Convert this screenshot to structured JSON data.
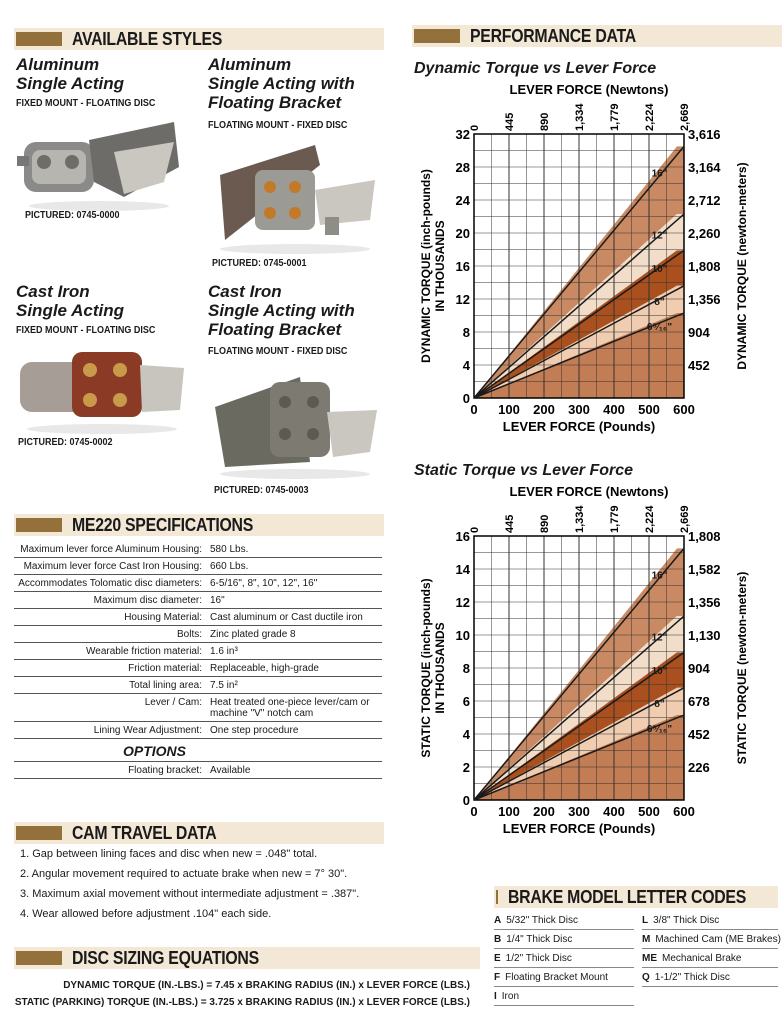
{
  "sections": {
    "available_styles": "AVAILABLE STYLES",
    "performance_data": "PERFORMANCE DATA",
    "specifications": "ME220 SPECIFICATIONS",
    "cam_travel": "CAM TRAVEL DATA",
    "disc_sizing": "DISC SIZING EQUATIONS",
    "brake_codes": "BRAKE MODEL LETTER CODES"
  },
  "styles": [
    {
      "title1": "Aluminum",
      "title2": "Single Acting",
      "sub": "FIXED MOUNT - FLOATING DISC",
      "pictured": "PICTURED: 0745-0000"
    },
    {
      "title1": "Aluminum",
      "title2": "Single Acting with",
      "title3": "Floating Bracket",
      "sub": "FLOATING MOUNT - FIXED DISC",
      "pictured": "PICTURED: 0745-0001"
    },
    {
      "title1": "Cast Iron",
      "title2": "Single Acting",
      "sub": "FIXED MOUNT - FLOATING DISC",
      "pictured": "PICTURED: 0745-0002"
    },
    {
      "title1": "Cast Iron",
      "title2": "Single Acting with",
      "title3": "Floating Bracket",
      "sub": "FLOATING MOUNT - FIXED DISC",
      "pictured": "PICTURED: 0745-0003"
    }
  ],
  "specs": [
    {
      "k": "Maximum lever force Aluminum Housing:",
      "v": "580 Lbs."
    },
    {
      "k": "Maximum lever force Cast Iron Housing:",
      "v": "660 Lbs."
    },
    {
      "k": "Accommodates Tolomatic disc diameters:",
      "v": "6-5/16\",  8\",  10\", 12\", 16\""
    },
    {
      "k": "Maximum disc diameter:",
      "v": "16\""
    },
    {
      "k": "Housing Material:",
      "v": "Cast aluminum or Cast ductile iron"
    },
    {
      "k": "Bolts:",
      "v": "Zinc plated grade 8"
    },
    {
      "k": "Wearable friction material:",
      "v": "1.6 in³"
    },
    {
      "k": "Friction material:",
      "v": "Replaceable, high-grade"
    },
    {
      "k": "Total lining area:",
      "v": "7.5 in²"
    },
    {
      "k": "Lever / Cam:",
      "v": "Heat treated one-piece lever/cam or",
      "v2": "machine \"V\" notch cam"
    },
    {
      "k": "Lining Wear Adjustment:",
      "v": "One step procedure"
    }
  ],
  "options": {
    "heading": "OPTIONS",
    "k": "Floating bracket:",
    "v": "Available"
  },
  "cam_travel": [
    "1.  Gap between lining faces and disc when new = .048\" total.",
    "2.  Angular movement required to actuate brake when new = 7° 30\".",
    "3.  Maximum axial movement without intermediate adjustment = .387\".",
    "4.  Wear allowed before adjustment .104\" each side."
  ],
  "equations": [
    "DYNAMIC TORQUE (IN.-LBS.) = 7.45 x BRAKING RADIUS (IN.) x LEVER FORCE (LBS.)",
    "STATIC (PARKING) TORQUE (IN.-LBS.) = 3.725 x BRAKING RADIUS (IN.) x LEVER FORCE (LBS.)"
  ],
  "codes_left": [
    {
      "c": "A",
      "d": "5/32\" Thick Disc"
    },
    {
      "c": "B",
      "d": "1/4\" Thick Disc"
    },
    {
      "c": "E",
      "d": "1/2\" Thick Disc"
    },
    {
      "c": "F",
      "d": "Floating Bracket Mount"
    },
    {
      "c": "I",
      "d": "Iron"
    }
  ],
  "codes_right": [
    {
      "c": "L",
      "d": "3/8\" Thick Disc"
    },
    {
      "c": "M",
      "d": "Machined Cam (ME Brakes)"
    },
    {
      "c": "ME",
      "d": "Mechanical Brake"
    },
    {
      "c": "Q",
      "d": "1-1/2\" Thick Disc"
    }
  ],
  "colors": {
    "header_bg": "#f3e7d6",
    "header_block": "#94703a",
    "band_dark": "#b8704a",
    "band_light": "#f2ddc9",
    "band_mid": "#dca581",
    "band_deep": "#a9501e"
  },
  "chart_data": [
    {
      "type": "area",
      "title": "Dynamic Torque vs Lever Force",
      "xlabel": "LEVER FORCE (Pounds)",
      "x2label": "LEVER FORCE (Newtons)",
      "ylabel": "DYNAMIC TORQUE (inch-pounds) IN THOUSANDS",
      "y2label": "DYNAMIC TORQUE (newton-meters)",
      "xlim": [
        0,
        600
      ],
      "ylim": [
        0,
        32
      ],
      "x_ticks": [
        "0",
        "100",
        "200",
        "300",
        "400",
        "500",
        "600"
      ],
      "x2_ticks": [
        "0",
        "445",
        "890",
        "1,334",
        "1,779",
        "2,224",
        "2,669"
      ],
      "y_ticks": [
        "0",
        "4",
        "8",
        "12",
        "16",
        "20",
        "24",
        "28",
        "32"
      ],
      "y2_ticks": [
        "452",
        "904",
        "1,356",
        "1,808",
        "2,260",
        "2,712",
        "3,164",
        "3,616"
      ],
      "series": [
        {
          "name": "16\"",
          "x": [
            0,
            580
          ],
          "y": [
            0,
            30.5
          ]
        },
        {
          "name": "12\"",
          "x": [
            0,
            580
          ],
          "y": [
            0,
            22.3
          ]
        },
        {
          "name": "10\"",
          "x": [
            0,
            580
          ],
          "y": [
            0,
            17.9
          ]
        },
        {
          "name": "8\"",
          "x": [
            0,
            580
          ],
          "y": [
            0,
            13.6
          ]
        },
        {
          "name": "6⁵⁄₁₆\"",
          "x": [
            0,
            580
          ],
          "y": [
            0,
            10.3
          ]
        }
      ],
      "grid": true
    },
    {
      "type": "area",
      "title": "Static Torque vs Lever Force",
      "xlabel": "LEVER FORCE (Pounds)",
      "x2label": "LEVER FORCE (Newtons)",
      "ylabel": "STATIC TORQUE (inch-pounds) IN THOUSANDS",
      "y2label": "STATIC TORQUE (newton-meters)",
      "xlim": [
        0,
        600
      ],
      "ylim": [
        0,
        16
      ],
      "x_ticks": [
        "0",
        "100",
        "200",
        "300",
        "400",
        "500",
        "600"
      ],
      "x2_ticks": [
        "0",
        "445",
        "890",
        "1,334",
        "1,779",
        "2,224",
        "2,669"
      ],
      "y_ticks": [
        "0",
        "2",
        "4",
        "6",
        "8",
        "10",
        "12",
        "14",
        "16"
      ],
      "y2_ticks": [
        "226",
        "452",
        "678",
        "904",
        "1,130",
        "1,356",
        "1,582",
        "1,808"
      ],
      "series": [
        {
          "name": "16\"",
          "x": [
            0,
            580
          ],
          "y": [
            0,
            15.25
          ]
        },
        {
          "name": "12\"",
          "x": [
            0,
            580
          ],
          "y": [
            0,
            11.15
          ]
        },
        {
          "name": "10\"",
          "x": [
            0,
            580
          ],
          "y": [
            0,
            8.95
          ]
        },
        {
          "name": "8\"",
          "x": [
            0,
            580
          ],
          "y": [
            0,
            6.8
          ]
        },
        {
          "name": "6⁵⁄₁₆\"",
          "x": [
            0,
            580
          ],
          "y": [
            0,
            5.15
          ]
        }
      ],
      "grid": true
    }
  ]
}
